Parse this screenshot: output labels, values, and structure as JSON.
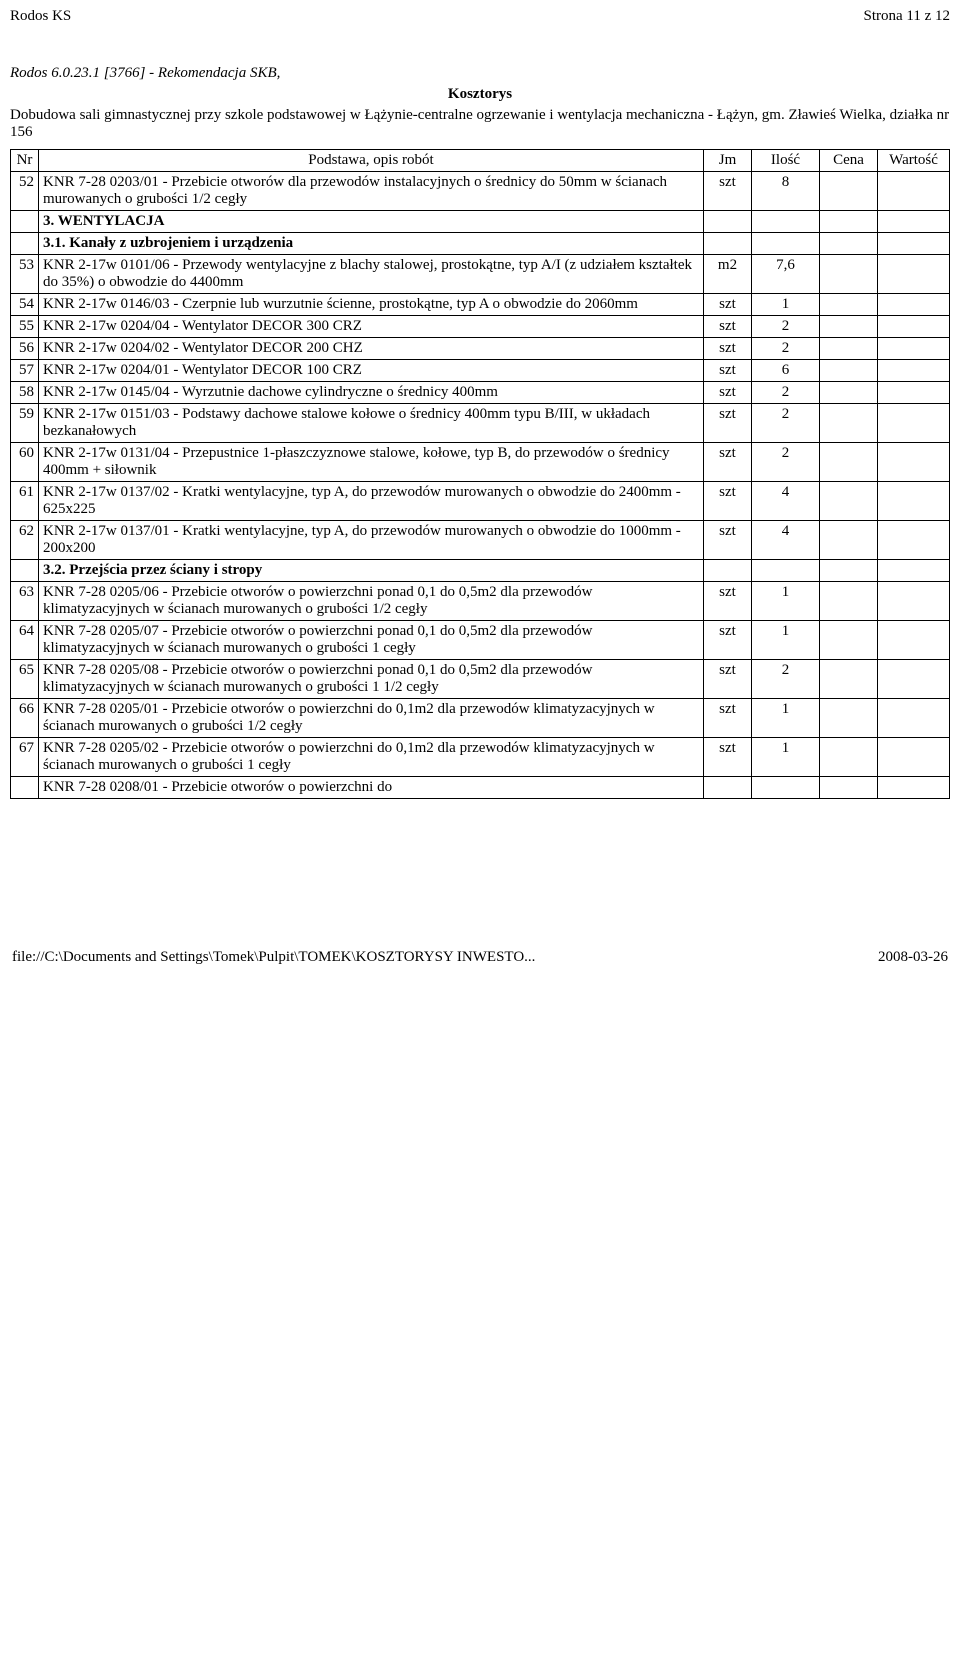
{
  "header": {
    "left": "Rodos KS",
    "right": "Strona 11 z 12"
  },
  "subheader": {
    "line1": "Rodos 6.0.23.1 [3766] - Rekomendacja SKB,",
    "line2": "Kosztorys",
    "line3": "Dobudowa sali gimnastycznej przy szkole podstawowej w Łążynie-centralne ogrzewanie i wentylacja mechaniczna - Łążyn, gm. Zławieś Wielka, działka nr 156"
  },
  "columns": {
    "nr": "Nr",
    "desc": "Podstawa, opis robót",
    "jm": "Jm",
    "qty": "Ilość",
    "cena": "Cena",
    "wart": "Wartość"
  },
  "rows": [
    {
      "nr": "52",
      "desc": "KNR 7-28 0203/01 - Przebicie otworów dla przewodów instalacyjnych o średnicy do 50mm w ścianach murowanych o grubości 1/2 cegły",
      "jm": "szt",
      "qty": "8"
    },
    {
      "section": true,
      "desc": "3. WENTYLACJA"
    },
    {
      "section": true,
      "desc": "3.1. Kanały z uzbrojeniem i urządzenia"
    },
    {
      "nr": "53",
      "desc": "KNR 2-17w 0101/06 - Przewody wentylacyjne z blachy stalowej, prostokątne, typ A/I (z udziałem kształtek do 35%) o obwodzie do 4400mm",
      "jm": "m2",
      "qty": "7,6"
    },
    {
      "nr": "54",
      "desc": "KNR 2-17w 0146/03 - Czerpnie lub wurzutnie ścienne, prostokątne, typ A o obwodzie do 2060mm",
      "jm": "szt",
      "qty": "1"
    },
    {
      "nr": "55",
      "desc": "KNR 2-17w 0204/04 - Wentylator DECOR 300 CRZ",
      "jm": "szt",
      "qty": "2"
    },
    {
      "nr": "56",
      "desc": "KNR 2-17w 0204/02 - Wentylator DECOR 200 CHZ",
      "jm": "szt",
      "qty": "2"
    },
    {
      "nr": "57",
      "desc": "KNR 2-17w 0204/01 - Wentylator DECOR 100 CRZ",
      "jm": "szt",
      "qty": "6"
    },
    {
      "nr": "58",
      "desc": "KNR 2-17w 0145/04 - Wyrzutnie dachowe cylindryczne o średnicy 400mm",
      "jm": "szt",
      "qty": "2"
    },
    {
      "nr": "59",
      "desc": "KNR 2-17w 0151/03 - Podstawy dachowe stalowe kołowe o średnicy 400mm typu B/III, w układach bezkanałowych",
      "jm": "szt",
      "qty": "2"
    },
    {
      "nr": "60",
      "desc": "KNR 2-17w 0131/04 - Przepustnice 1-płaszczyznowe stalowe, kołowe, typ B, do przewodów o średnicy 400mm + siłownik",
      "jm": "szt",
      "qty": "2"
    },
    {
      "nr": "61",
      "desc": "KNR 2-17w 0137/02 - Kratki wentylacyjne, typ A, do przewodów murowanych o obwodzie do 2400mm - 625x225",
      "jm": "szt",
      "qty": "4"
    },
    {
      "nr": "62",
      "desc": "KNR 2-17w 0137/01 - Kratki wentylacyjne, typ A, do przewodów murowanych o obwodzie do 1000mm - 200x200",
      "jm": "szt",
      "qty": "4"
    },
    {
      "section": true,
      "desc": "3.2. Przejścia przez ściany i stropy"
    },
    {
      "nr": "63",
      "desc": "KNR 7-28 0205/06 - Przebicie otworów o powierzchni ponad 0,1 do 0,5m2 dla przewodów klimatyzacyjnych w ścianach murowanych o grubości 1/2 cegły",
      "jm": "szt",
      "qty": "1"
    },
    {
      "nr": "64",
      "desc": "KNR 7-28 0205/07 - Przebicie otworów o powierzchni ponad 0,1 do 0,5m2 dla przewodów klimatyzacyjnych w ścianach murowanych o grubości 1 cegły",
      "jm": "szt",
      "qty": "1"
    },
    {
      "nr": "65",
      "desc": "KNR 7-28 0205/08 - Przebicie otworów o powierzchni ponad 0,1 do 0,5m2 dla przewodów klimatyzacyjnych w ścianach murowanych o grubości 1 1/2 cegły",
      "jm": "szt",
      "qty": "2"
    },
    {
      "nr": "66",
      "desc": "KNR 7-28 0205/01 - Przebicie otworów o powierzchni do 0,1m2 dla przewodów klimatyzacyjnych w ścianach murowanych o grubości 1/2 cegły",
      "jm": "szt",
      "qty": "1"
    },
    {
      "nr": "67",
      "desc": "KNR 7-28 0205/02 - Przebicie otworów o powierzchni do 0,1m2 dla przewodów klimatyzacyjnych w ścianach murowanych o grubości 1 cegły",
      "jm": "szt",
      "qty": "1"
    },
    {
      "trailing": true,
      "desc": "KNR 7-28 0208/01 - Przebicie otworów o powierzchni do"
    }
  ],
  "footer": {
    "left": "file://C:\\Documents and Settings\\Tomek\\Pulpit\\TOMEK\\KOSZTORYSY INWESTO...",
    "right": "2008-03-26"
  }
}
